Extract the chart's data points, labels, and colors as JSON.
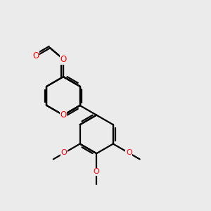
{
  "bg_color": "#ebebeb",
  "line_color": "#000000",
  "o_color": "#ff0000",
  "line_width": 1.6,
  "dbo": 0.05,
  "fig_size": [
    3.0,
    3.0
  ],
  "dpi": 100,
  "xlim": [
    -2.6,
    2.8
  ],
  "ylim": [
    -2.2,
    2.0
  ]
}
